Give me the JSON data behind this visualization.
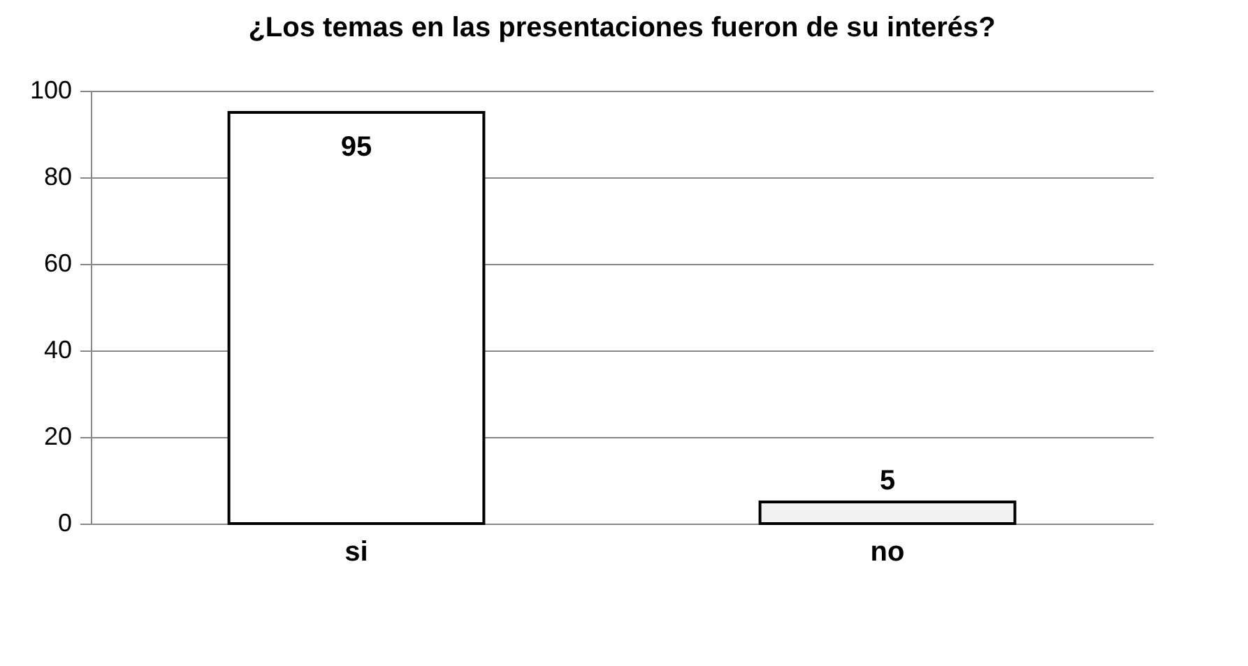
{
  "chart_data": {
    "type": "bar",
    "title": "¿Los temas en las presentaciones fueron de su interés?",
    "categories": [
      "si",
      "no"
    ],
    "values": [
      95,
      5
    ],
    "colors": [
      "#ffffff",
      "#f2f2f2"
    ],
    "ylim": [
      0,
      100
    ],
    "yticks": [
      0,
      20,
      40,
      60,
      80,
      100
    ],
    "grid": "y",
    "data_labels": true,
    "legend": false
  }
}
